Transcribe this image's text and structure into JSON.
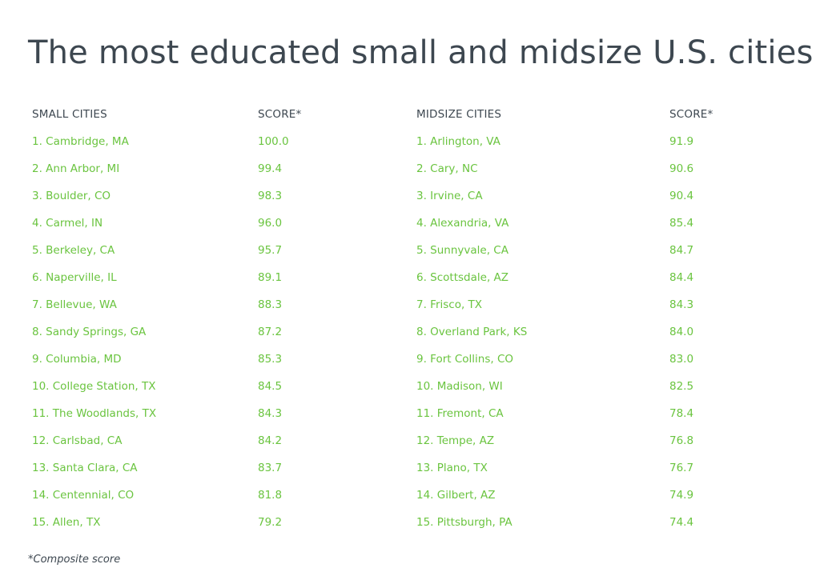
{
  "title": "The most educated small and midsize U.S. cities",
  "headers": {
    "small_cities": "SMALL CITIES",
    "small_score": "SCORE*",
    "midsize_cities": "MIDSIZE CITIES",
    "midsize_score": "SCORE*"
  },
  "rows": [
    {
      "small_city": "1. Cambridge, MA",
      "small_score": "100.0",
      "midsize_city": "1. Arlington, VA",
      "midsize_score": "91.9"
    },
    {
      "small_city": "2. Ann Arbor, MI",
      "small_score": "99.4",
      "midsize_city": "2. Cary, NC",
      "midsize_score": "90.6"
    },
    {
      "small_city": "3. Boulder, CO",
      "small_score": "98.3",
      "midsize_city": "3. Irvine, CA",
      "midsize_score": "90.4"
    },
    {
      "small_city": "4. Carmel, IN",
      "small_score": "96.0",
      "midsize_city": "4. Alexandria, VA",
      "midsize_score": "85.4"
    },
    {
      "small_city": "5. Berkeley, CA",
      "small_score": "95.7",
      "midsize_city": "5. Sunnyvale, CA",
      "midsize_score": "84.7"
    },
    {
      "small_city": "6. Naperville, IL",
      "small_score": "89.1",
      "midsize_city": "6. Scottsdale, AZ",
      "midsize_score": "84.4"
    },
    {
      "small_city": "7. Bellevue, WA",
      "small_score": "88.3",
      "midsize_city": "7. Frisco, TX",
      "midsize_score": "84.3"
    },
    {
      "small_city": "8. Sandy Springs, GA",
      "small_score": "87.2",
      "midsize_city": "8. Overland Park, KS",
      "midsize_score": "84.0"
    },
    {
      "small_city": "9. Columbia, MD",
      "small_score": "85.3",
      "midsize_city": "9. Fort Collins, CO",
      "midsize_score": "83.0"
    },
    {
      "small_city": "10. College Station, TX",
      "small_score": "84.5",
      "midsize_city": "10. Madison, WI",
      "midsize_score": "82.5"
    },
    {
      "small_city": "11. The Woodlands, TX",
      "small_score": "84.3",
      "midsize_city": "11. Fremont, CA",
      "midsize_score": "78.4"
    },
    {
      "small_city": "12. Carlsbad, CA",
      "small_score": "84.2",
      "midsize_city": "12. Tempe, AZ",
      "midsize_score": "76.8"
    },
    {
      "small_city": "13. Santa Clara, CA",
      "small_score": "83.7",
      "midsize_city": "13. Plano, TX",
      "midsize_score": "76.7"
    },
    {
      "small_city": "14. Centennial, CO",
      "small_score": "81.8",
      "midsize_city": "14. Gilbert, AZ",
      "midsize_score": "74.9"
    },
    {
      "small_city": "15. Allen, TX",
      "small_score": "79.2",
      "midsize_city": "15. Pittsburgh, PA",
      "midsize_score": "74.4"
    }
  ],
  "footnote": "*Composite score",
  "colors": {
    "title_text": "#3d4750",
    "row_text": "#6ac43f",
    "background": "#ffffff"
  }
}
